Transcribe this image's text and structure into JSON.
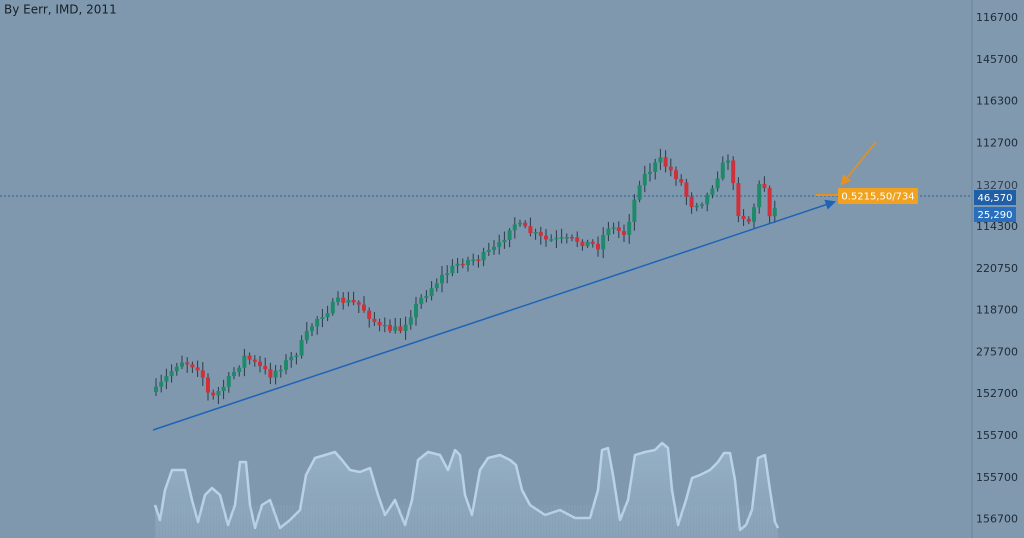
{
  "title": "By Eerr, IMD, 2011",
  "axis_labels": [
    "116700",
    "145700",
    "116300",
    "112700",
    "132700",
    "114300",
    "220750",
    "118700",
    "275700",
    "152700",
    "155700",
    "155700",
    "156700"
  ],
  "price_tags": [
    "46,570",
    "25,290"
  ],
  "annotation": "0.5215,50/734"
}
